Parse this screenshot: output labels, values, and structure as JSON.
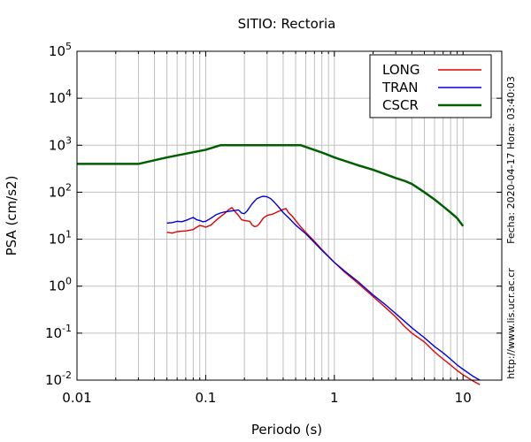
{
  "chart_data": {
    "type": "line",
    "title": "SITIO: Rectoria",
    "xlabel": "Periodo (s)",
    "ylabel": "PSA (cm/s2)",
    "xscale": "log",
    "yscale": "log",
    "xlim": [
      0.01,
      20
    ],
    "ylim": [
      0.01,
      100000
    ],
    "x_ticks": [
      {
        "value": 0.01,
        "label": "0.01"
      },
      {
        "value": 0.1,
        "label": "0.1"
      },
      {
        "value": 1,
        "label": "1"
      },
      {
        "value": 10,
        "label": "10"
      }
    ],
    "y_ticks": [
      {
        "value": 100000,
        "base": "10",
        "exp": "5"
      },
      {
        "value": 10000,
        "base": "10",
        "exp": "4"
      },
      {
        "value": 1000,
        "base": "10",
        "exp": "3"
      },
      {
        "value": 100,
        "base": "10",
        "exp": "2"
      },
      {
        "value": 10,
        "base": "10",
        "exp": "1"
      },
      {
        "value": 1,
        "base": "10",
        "exp": "0"
      },
      {
        "value": 0.1,
        "base": "10",
        "exp": "-1"
      },
      {
        "value": 0.01,
        "base": "10",
        "exp": "-2"
      }
    ],
    "grid": true,
    "legend_position": "top-right",
    "series": [
      {
        "name": "LONG",
        "color": "#e00000",
        "points": [
          [
            0.05,
            14
          ],
          [
            0.055,
            13.5
          ],
          [
            0.06,
            14.5
          ],
          [
            0.065,
            14.8
          ],
          [
            0.07,
            15
          ],
          [
            0.075,
            15.5
          ],
          [
            0.08,
            16
          ],
          [
            0.085,
            18
          ],
          [
            0.09,
            19.5
          ],
          [
            0.095,
            19
          ],
          [
            0.1,
            18
          ],
          [
            0.11,
            20
          ],
          [
            0.12,
            25
          ],
          [
            0.13,
            30
          ],
          [
            0.14,
            35
          ],
          [
            0.15,
            42
          ],
          [
            0.16,
            47
          ],
          [
            0.17,
            38
          ],
          [
            0.18,
            32
          ],
          [
            0.19,
            26
          ],
          [
            0.2,
            25
          ],
          [
            0.21,
            24.5
          ],
          [
            0.22,
            24
          ],
          [
            0.23,
            20
          ],
          [
            0.24,
            18.5
          ],
          [
            0.25,
            19
          ],
          [
            0.26,
            21
          ],
          [
            0.28,
            28
          ],
          [
            0.3,
            32
          ],
          [
            0.33,
            34
          ],
          [
            0.36,
            38
          ],
          [
            0.39,
            42
          ],
          [
            0.42,
            45
          ],
          [
            0.44,
            37
          ],
          [
            0.47,
            31
          ],
          [
            0.5,
            25
          ],
          [
            0.55,
            18
          ],
          [
            0.6,
            14
          ],
          [
            0.7,
            9
          ],
          [
            0.8,
            6
          ],
          [
            1,
            3.2
          ],
          [
            1.2,
            2
          ],
          [
            1.5,
            1.2
          ],
          [
            2,
            0.6
          ],
          [
            2.5,
            0.35
          ],
          [
            3,
            0.22
          ],
          [
            3.5,
            0.14
          ],
          [
            4,
            0.1
          ],
          [
            5,
            0.065
          ],
          [
            6,
            0.04
          ],
          [
            7,
            0.028
          ],
          [
            8,
            0.021
          ],
          [
            9,
            0.016
          ],
          [
            10,
            0.013
          ],
          [
            12,
            0.0095
          ],
          [
            13.5,
            0.008
          ]
        ]
      },
      {
        "name": "TRAN",
        "color": "#0000e0",
        "points": [
          [
            0.05,
            22
          ],
          [
            0.055,
            22.5
          ],
          [
            0.06,
            24
          ],
          [
            0.065,
            23.5
          ],
          [
            0.07,
            25
          ],
          [
            0.075,
            27
          ],
          [
            0.08,
            29
          ],
          [
            0.085,
            26
          ],
          [
            0.09,
            25
          ],
          [
            0.095,
            23.5
          ],
          [
            0.1,
            24
          ],
          [
            0.11,
            28
          ],
          [
            0.12,
            33
          ],
          [
            0.13,
            36
          ],
          [
            0.14,
            38
          ],
          [
            0.15,
            39
          ],
          [
            0.16,
            40
          ],
          [
            0.17,
            41
          ],
          [
            0.18,
            42
          ],
          [
            0.19,
            36
          ],
          [
            0.2,
            35
          ],
          [
            0.21,
            40
          ],
          [
            0.22,
            48
          ],
          [
            0.23,
            57
          ],
          [
            0.24,
            65
          ],
          [
            0.25,
            73
          ],
          [
            0.27,
            80
          ],
          [
            0.28,
            82
          ],
          [
            0.3,
            80
          ],
          [
            0.32,
            73
          ],
          [
            0.34,
            62
          ],
          [
            0.37,
            48
          ],
          [
            0.4,
            37
          ],
          [
            0.45,
            27
          ],
          [
            0.5,
            20
          ],
          [
            0.6,
            13
          ],
          [
            0.7,
            8.5
          ],
          [
            0.8,
            5.8
          ],
          [
            1,
            3.2
          ],
          [
            1.2,
            2.1
          ],
          [
            1.5,
            1.3
          ],
          [
            2,
            0.65
          ],
          [
            2.5,
            0.4
          ],
          [
            3,
            0.26
          ],
          [
            3.5,
            0.18
          ],
          [
            4,
            0.13
          ],
          [
            5,
            0.08
          ],
          [
            6,
            0.052
          ],
          [
            7,
            0.038
          ],
          [
            8,
            0.028
          ],
          [
            9,
            0.021
          ],
          [
            10,
            0.017
          ],
          [
            12,
            0.012
          ],
          [
            13.5,
            0.01
          ]
        ]
      },
      {
        "name": "CSCR",
        "color": "#006000",
        "points": [
          [
            0.01,
            400
          ],
          [
            0.03,
            400
          ],
          [
            0.05,
            550
          ],
          [
            0.1,
            800
          ],
          [
            0.13,
            1000
          ],
          [
            0.55,
            1000
          ],
          [
            0.8,
            700
          ],
          [
            1,
            550
          ],
          [
            1.5,
            380
          ],
          [
            2,
            300
          ],
          [
            2.5,
            240
          ],
          [
            3,
            200
          ],
          [
            3.5,
            175
          ],
          [
            4,
            150
          ],
          [
            5,
            100
          ],
          [
            6,
            70
          ],
          [
            7,
            50
          ],
          [
            8,
            37
          ],
          [
            9,
            28
          ],
          [
            10,
            19
          ]
        ]
      }
    ],
    "side_labels": {
      "date_stamp": "Fecha: 2020-04-17 Hora: 03:40:03",
      "url": "http://www.lis.ucr.ac.cr"
    }
  }
}
